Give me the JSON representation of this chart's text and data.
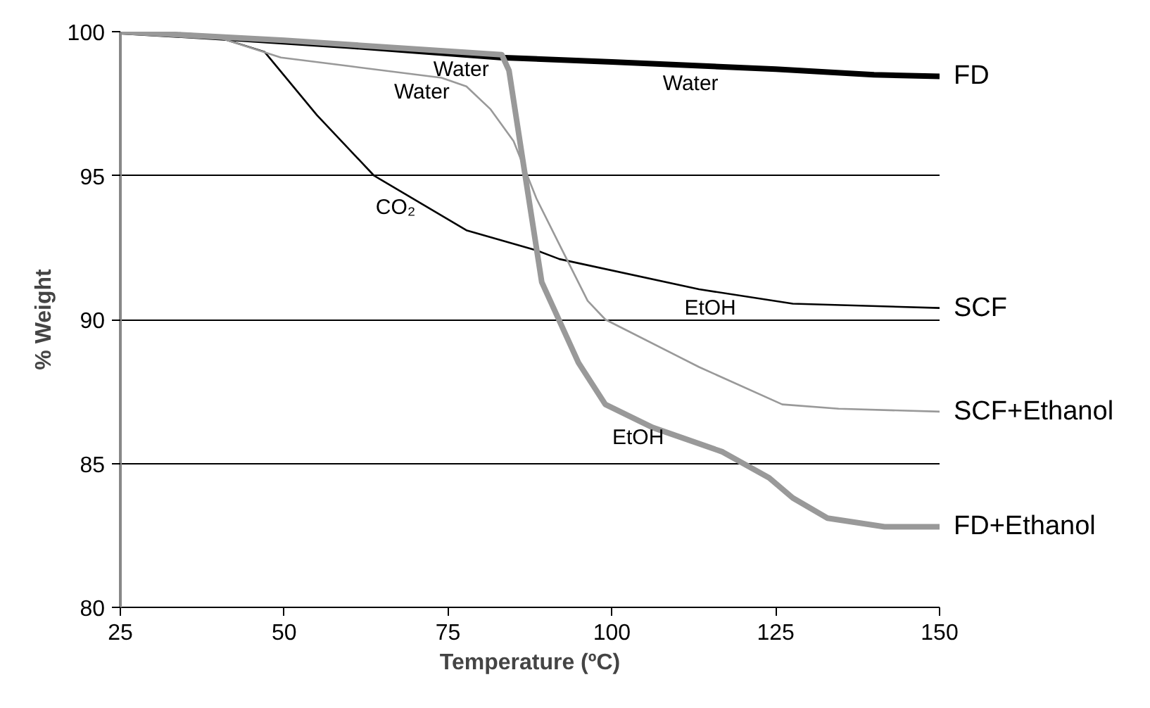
{
  "chart_data": {
    "type": "line",
    "xlabel": "Temperature (ºC)",
    "ylabel": "% Weight",
    "xlim": [
      25,
      150
    ],
    "ylim": [
      80,
      100
    ],
    "xticks": [
      25,
      50,
      75,
      100,
      125,
      150
    ],
    "yticks": [
      80,
      85,
      90,
      95,
      100
    ],
    "grid": "y",
    "marker": "none",
    "line_style": "solid",
    "series": [
      {
        "name": "FD",
        "color": "#000000",
        "x": [
          25,
          40,
          60,
          83,
          100,
          125,
          140,
          150
        ],
        "values": [
          100,
          99.8,
          99.5,
          99.1,
          98.95,
          98.7,
          98.5,
          98.45
        ]
      },
      {
        "name": "SCF",
        "color": "#000000",
        "x": [
          25,
          40,
          47,
          55,
          63.7,
          77.8,
          88.5,
          92,
          113.3,
          127.6,
          150
        ],
        "values": [
          100,
          99.8,
          99.3,
          97.1,
          95.0,
          93.1,
          92.4,
          92.1,
          91.05,
          90.55,
          90.4
        ]
      },
      {
        "name": "SCF+Ethanol",
        "color": "#999999",
        "x": [
          25,
          40,
          49.5,
          60,
          74,
          77.8,
          81.5,
          85,
          88.5,
          92,
          96.3,
          99,
          113.3,
          126,
          134.6,
          150
        ],
        "values": [
          100,
          99.8,
          99.1,
          98.8,
          98.4,
          98.1,
          97.3,
          96.2,
          94.2,
          92.6,
          90.65,
          90.0,
          88.35,
          87.05,
          86.9,
          86.8
        ]
      },
      {
        "name": "FD+Ethanol",
        "color": "#999999",
        "x": [
          25,
          50,
          83.2,
          84.3,
          86.5,
          89.3,
          94.9,
          99,
          106.2,
          116.9,
          124,
          127.6,
          132.9,
          141.6,
          150
        ],
        "values": [
          100,
          99.7,
          99.2,
          98.65,
          95.4,
          91.3,
          88.5,
          87.05,
          86.25,
          85.4,
          84.5,
          83.8,
          83.1,
          82.8,
          82.8
        ]
      }
    ],
    "annotations": [
      {
        "text": "Water",
        "x": 77,
        "y": 99.3
      },
      {
        "text": "Water",
        "x": 71,
        "y": 98.5
      },
      {
        "text": "Water",
        "x": 112,
        "y": 98.8
      },
      {
        "text": "CO₂",
        "x": 67,
        "y": 94.5
      },
      {
        "text": "EtOH",
        "x": 115,
        "y": 91.0
      },
      {
        "text": "EtOH",
        "x": 104,
        "y": 86.5
      }
    ]
  }
}
